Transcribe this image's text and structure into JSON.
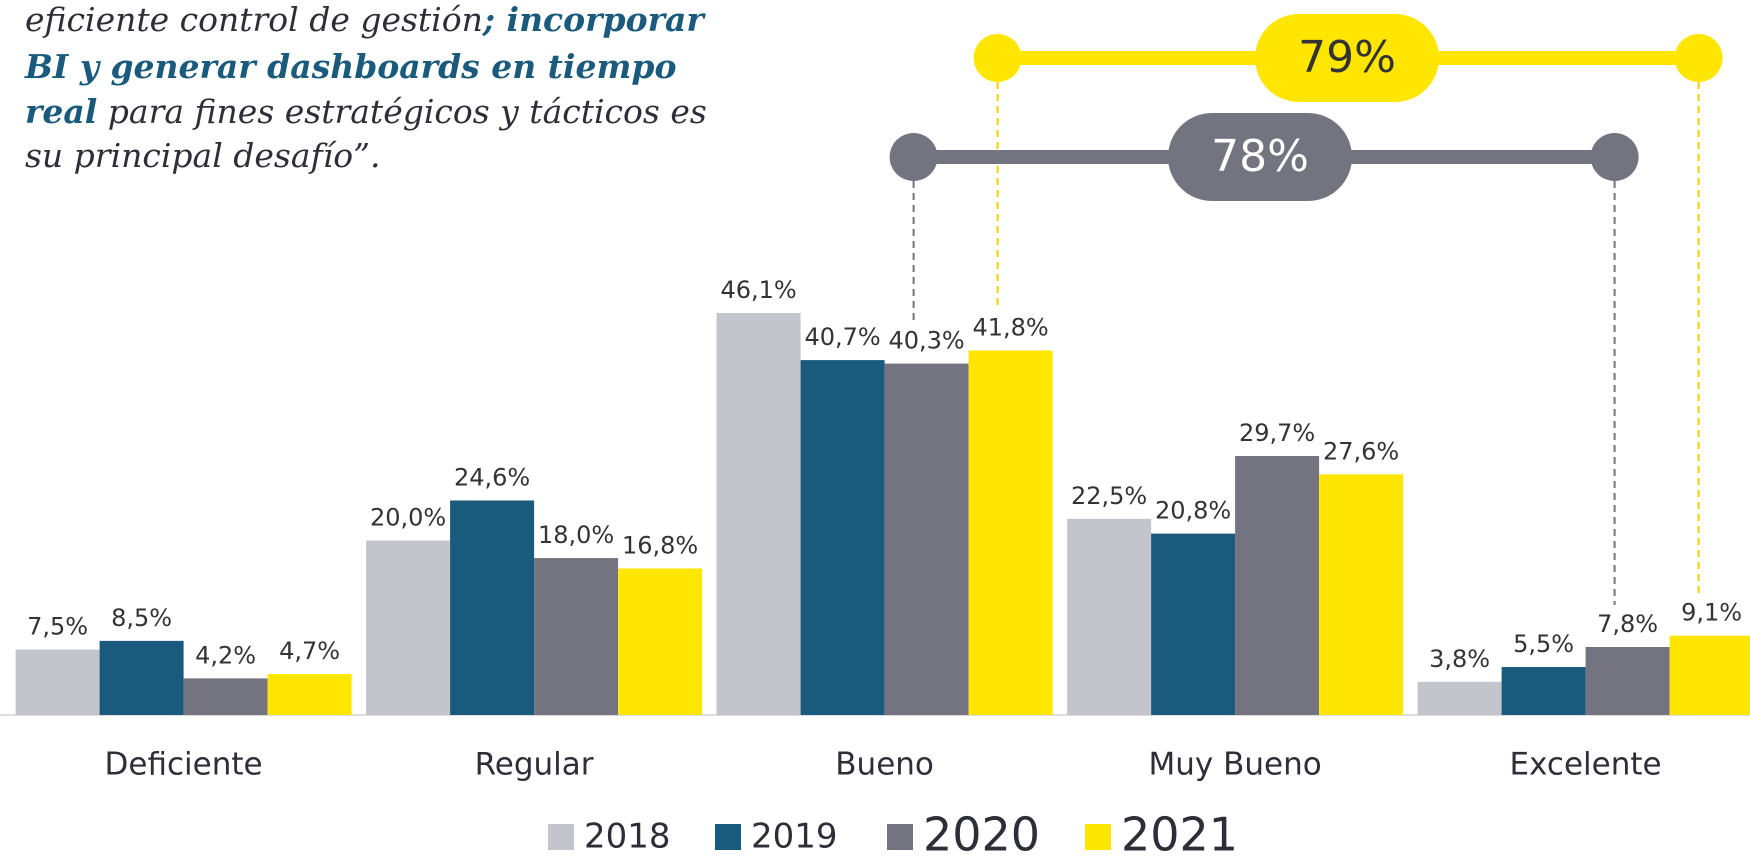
{
  "quote": [
    [
      {
        "text": "eficiente control de gestión",
        "bold": false
      },
      {
        "text": "; incorporar",
        "bold": true
      }
    ],
    [
      {
        "text": "BI y generar dashboards en tiempo",
        "bold": true
      }
    ],
    [
      {
        "text": "real",
        "bold": true
      },
      {
        "text": " para fines estratégicos y tácticos es",
        "bold": false
      }
    ],
    [
      {
        "text": "su principal desafío”.",
        "bold": false
      }
    ]
  ],
  "chart_data": {
    "type": "bar",
    "categories": [
      "Deficiente",
      "Regular",
      "Bueno",
      "Muy Bueno",
      "Excelente"
    ],
    "ylim": [
      0,
      50
    ],
    "series": [
      {
        "name": "2018",
        "color": "#c4c4cc",
        "values": [
          7.5,
          20.0,
          46.1,
          22.5,
          3.8
        ],
        "value_labels": [
          "7,5%",
          "20,0%",
          "46,1%",
          "22,5%",
          "3,8%"
        ]
      },
      {
        "name": "2019",
        "color": "#1a5a7c",
        "values": [
          8.5,
          24.6,
          40.7,
          20.8,
          5.5
        ],
        "value_labels": [
          "8,5%",
          "24,6%",
          "40,7%",
          "20,8%",
          "5,5%"
        ]
      },
      {
        "name": "2020",
        "color": "#747480",
        "values": [
          4.2,
          18.0,
          40.3,
          29.7,
          7.8
        ],
        "value_labels": [
          "4,2%",
          "18,0%",
          "40,3%",
          "29,7%",
          "7,8%"
        ]
      },
      {
        "name": "2021",
        "color": "#ffe600",
        "values": [
          4.7,
          16.8,
          41.8,
          27.6,
          9.1
        ],
        "value_labels": [
          "4,7%",
          "16,8%",
          "41,8%",
          "27,6%",
          "9,1%"
        ]
      }
    ],
    "annotations": [
      {
        "text": "79%",
        "color": "#ffe600"
      },
      {
        "text": "78%",
        "color": "#747480"
      }
    ]
  }
}
